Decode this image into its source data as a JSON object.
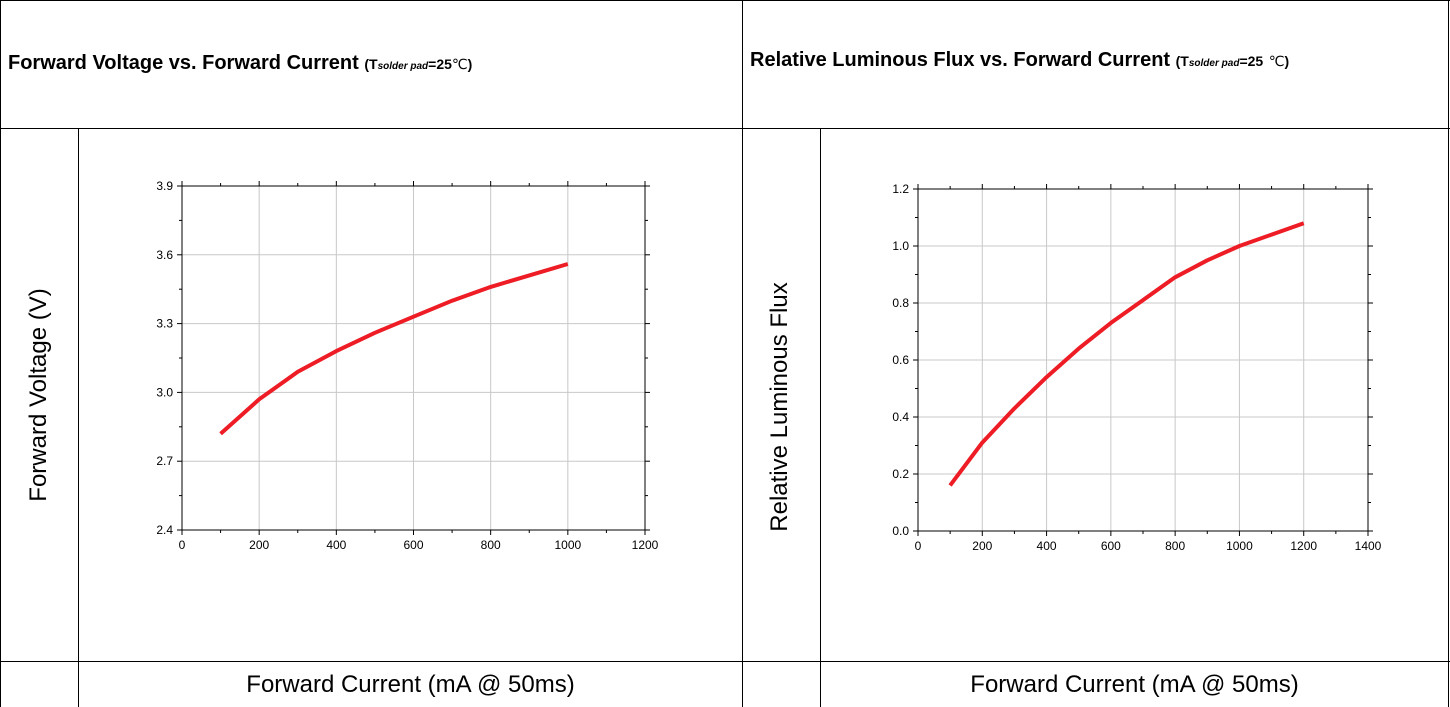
{
  "panels": [
    {
      "title_main": "Forward Voltage vs. Forward Current",
      "title_open": "(T",
      "title_sub": "solder pad",
      "title_eq": "=25",
      "title_deg": "℃",
      "title_close": ")",
      "ylabel": "Forward Voltage (V)",
      "xlabel": "Forward Current (mA @ 50ms)"
    },
    {
      "title_main": "Relative Luminous Flux vs. Forward Current",
      "title_open": "(T",
      "title_sub": "solder pad",
      "title_eq": "=25",
      "title_deg": "℃",
      "title_close": ")",
      "ylabel": "Relative Luminous Flux",
      "xlabel": "Forward Current (mA @ 50ms)"
    }
  ],
  "chart_data": [
    {
      "type": "line",
      "title": "Forward Voltage vs. Forward Current (Tsolder pad=25℃)",
      "xlabel": "Forward Current (mA @ 50ms)",
      "ylabel": "Forward Voltage (V)",
      "xlim": [
        0,
        1200
      ],
      "ylim": [
        2.4,
        3.9
      ],
      "xticks": [
        "0",
        "200",
        "400",
        "600",
        "800",
        "1000",
        "1200"
      ],
      "yticks": [
        "2.4",
        "2.7",
        "3.0",
        "3.3",
        "3.6",
        "3.9"
      ],
      "grid": true,
      "line_color": "#ee1c25",
      "x": [
        100,
        200,
        300,
        400,
        500,
        600,
        700,
        800,
        900,
        1000
      ],
      "y": [
        2.82,
        2.97,
        3.09,
        3.18,
        3.26,
        3.33,
        3.4,
        3.46,
        3.51,
        3.56
      ]
    },
    {
      "type": "line",
      "title": "Relative Luminous Flux vs. Forward Current (Tsolder pad=25℃)",
      "xlabel": "Forward Current (mA @ 50ms)",
      "ylabel": "Relative Luminous Flux",
      "xlim": [
        0,
        1400
      ],
      "ylim": [
        0.0,
        1.2
      ],
      "xticks": [
        "0",
        "200",
        "400",
        "600",
        "800",
        "1000",
        "1200",
        "1400"
      ],
      "yticks": [
        "0.0",
        "0.2",
        "0.4",
        "0.6",
        "0.8",
        "1.0",
        "1.2"
      ],
      "grid": true,
      "line_color": "#ee1c25",
      "x": [
        100,
        200,
        300,
        400,
        500,
        600,
        700,
        800,
        900,
        1000,
        1100,
        1200
      ],
      "y": [
        0.16,
        0.31,
        0.43,
        0.54,
        0.64,
        0.73,
        0.81,
        0.89,
        0.95,
        1.0,
        1.04,
        1.08
      ]
    }
  ]
}
